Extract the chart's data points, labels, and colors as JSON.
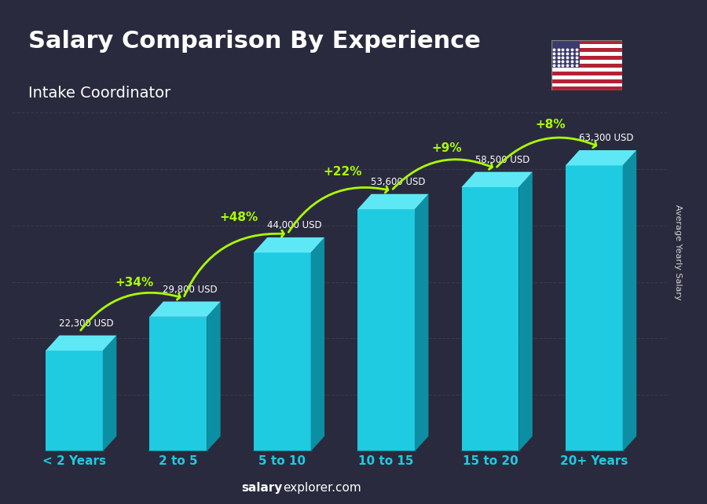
{
  "title": "Salary Comparison By Experience",
  "subtitle": "Intake Coordinator",
  "categories": [
    "< 2 Years",
    "2 to 5",
    "5 to 10",
    "10 to 15",
    "15 to 20",
    "20+ Years"
  ],
  "values": [
    22300,
    29800,
    44000,
    53600,
    58500,
    63300
  ],
  "labels": [
    "22,300 USD",
    "29,800 USD",
    "44,000 USD",
    "53,600 USD",
    "58,500 USD",
    "63,300 USD"
  ],
  "pct_changes": [
    "+34%",
    "+48%",
    "+22%",
    "+9%",
    "+8%"
  ],
  "bar_color_top": "#00d4f5",
  "bar_color_mid": "#00aacc",
  "bar_color_side": "#007a99",
  "bar_color_bottom": "#005f77",
  "bg_color": "#1a1a2e",
  "title_color": "#ffffff",
  "subtitle_color": "#ffffff",
  "label_color": "#ffffff",
  "pct_color": "#aaff00",
  "xlabel_color": "#00d4f5",
  "footer_color": "#ffffff",
  "ylabel_text": "Average Yearly Salary",
  "footer_left": "salary",
  "footer_right": "explorer.com",
  "ylim": [
    0,
    75000
  ],
  "figsize": [
    9.0,
    6.41
  ],
  "dpi": 100
}
